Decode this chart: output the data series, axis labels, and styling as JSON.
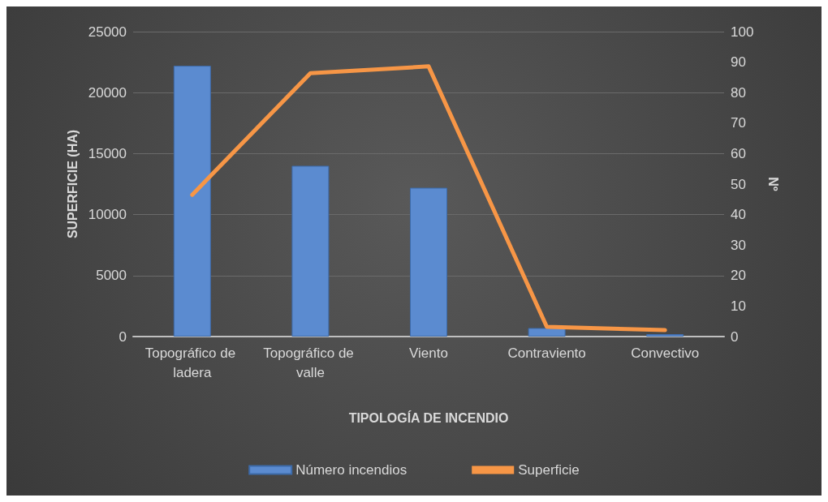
{
  "chart_data": {
    "type": "bar",
    "xlabel": "TIPOLOGÍA DE INCENDIO",
    "ylabel": "SUPERFICIE (HA)",
    "y2label": "Nº",
    "categories": [
      "Topográfico de ladera",
      "Topográfico de valle",
      "Viento",
      "Contraviento",
      "Convectivo"
    ],
    "series": [
      {
        "name": "Número incendios",
        "color": "#5b8bd0",
        "values": [
          22200,
          14000,
          12200,
          700,
          200
        ]
      },
      {
        "name": "Superficie",
        "type": "line",
        "axis": "y2",
        "color": "#f79646",
        "values": [
          46.5,
          86.4,
          88.6,
          3.2,
          2.1
        ]
      }
    ],
    "ylim": [
      0,
      25000
    ],
    "yticks": [
      0,
      5000,
      10000,
      15000,
      20000,
      25000
    ],
    "y2lim": [
      0,
      100
    ],
    "y2ticks": [
      0,
      10,
      20,
      30,
      40,
      50,
      60,
      70,
      80,
      90,
      100
    ],
    "grid": "y",
    "legend": "bottom",
    "marker": "none"
  }
}
